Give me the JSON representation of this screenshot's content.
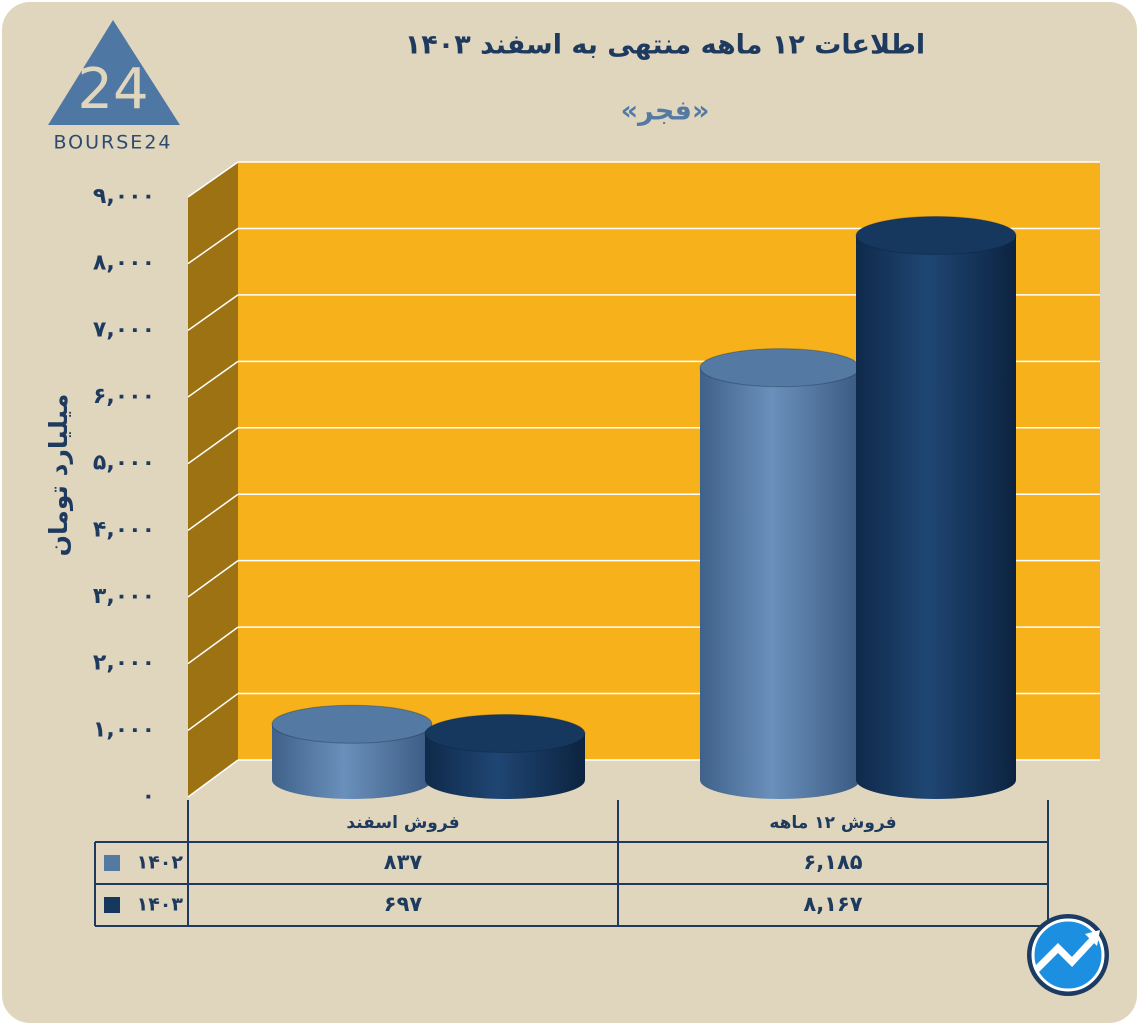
{
  "logo_text": "BOURSE24",
  "chart_data": {
    "type": "cylinder-bar",
    "title": "اطلاعات ۱۲ ماهه منتهی به اسفند ۱۴۰۳",
    "subtitle": "«فجر»",
    "y_label": "میلیارد تومان",
    "categories": [
      "فروش اسفند",
      "فروش ۱۲ ماهه"
    ],
    "series": [
      {
        "name": "۱۴۰۲",
        "color": "#5479a3",
        "values": [
          837,
          6185
        ],
        "value_labels": [
          "۸۳۷",
          "۶,۱۸۵"
        ]
      },
      {
        "name": "۱۴۰۳",
        "color": "#16375e",
        "values": [
          697,
          8167
        ],
        "value_labels": [
          "۶۹۷",
          "۸,۱۶۷"
        ]
      }
    ],
    "ylim": [
      0,
      9000
    ],
    "yticks": [
      {
        "value": 0,
        "label": "۰"
      },
      {
        "value": 1000,
        "label": "۱,۰۰۰"
      },
      {
        "value": 2000,
        "label": "۲,۰۰۰"
      },
      {
        "value": 3000,
        "label": "۳,۰۰۰"
      },
      {
        "value": 4000,
        "label": "۴,۰۰۰"
      },
      {
        "value": 5000,
        "label": "۵,۰۰۰"
      },
      {
        "value": 6000,
        "label": "۶,۰۰۰"
      },
      {
        "value": 7000,
        "label": "۷,۰۰۰"
      },
      {
        "value": 8000,
        "label": "۸,۰۰۰"
      },
      {
        "value": 9000,
        "label": "۹,۰۰۰"
      }
    ],
    "grid": true,
    "wall_color": "#f7b21b",
    "side_color": "#9c7213"
  }
}
